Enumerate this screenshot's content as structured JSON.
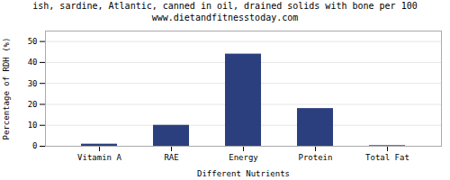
{
  "chart_data": {
    "type": "bar",
    "title": "ish, sardine, Atlantic, canned in oil, drained solids with bone per 100",
    "subtitle": "www.dietandfitnesstoday.com",
    "categories": [
      "Vitamin A",
      "RAE",
      "Energy",
      "Protein",
      "Total Fat"
    ],
    "values": [
      1,
      10,
      44,
      18,
      0.3
    ],
    "color": "#2b3f7e",
    "xlabel": "Different Nutrients",
    "ylabel": "Percentage of RDH (%)",
    "ylim": [
      0,
      55
    ],
    "yticks": [
      0,
      10,
      20,
      30,
      40,
      50
    ],
    "grid": true
  }
}
